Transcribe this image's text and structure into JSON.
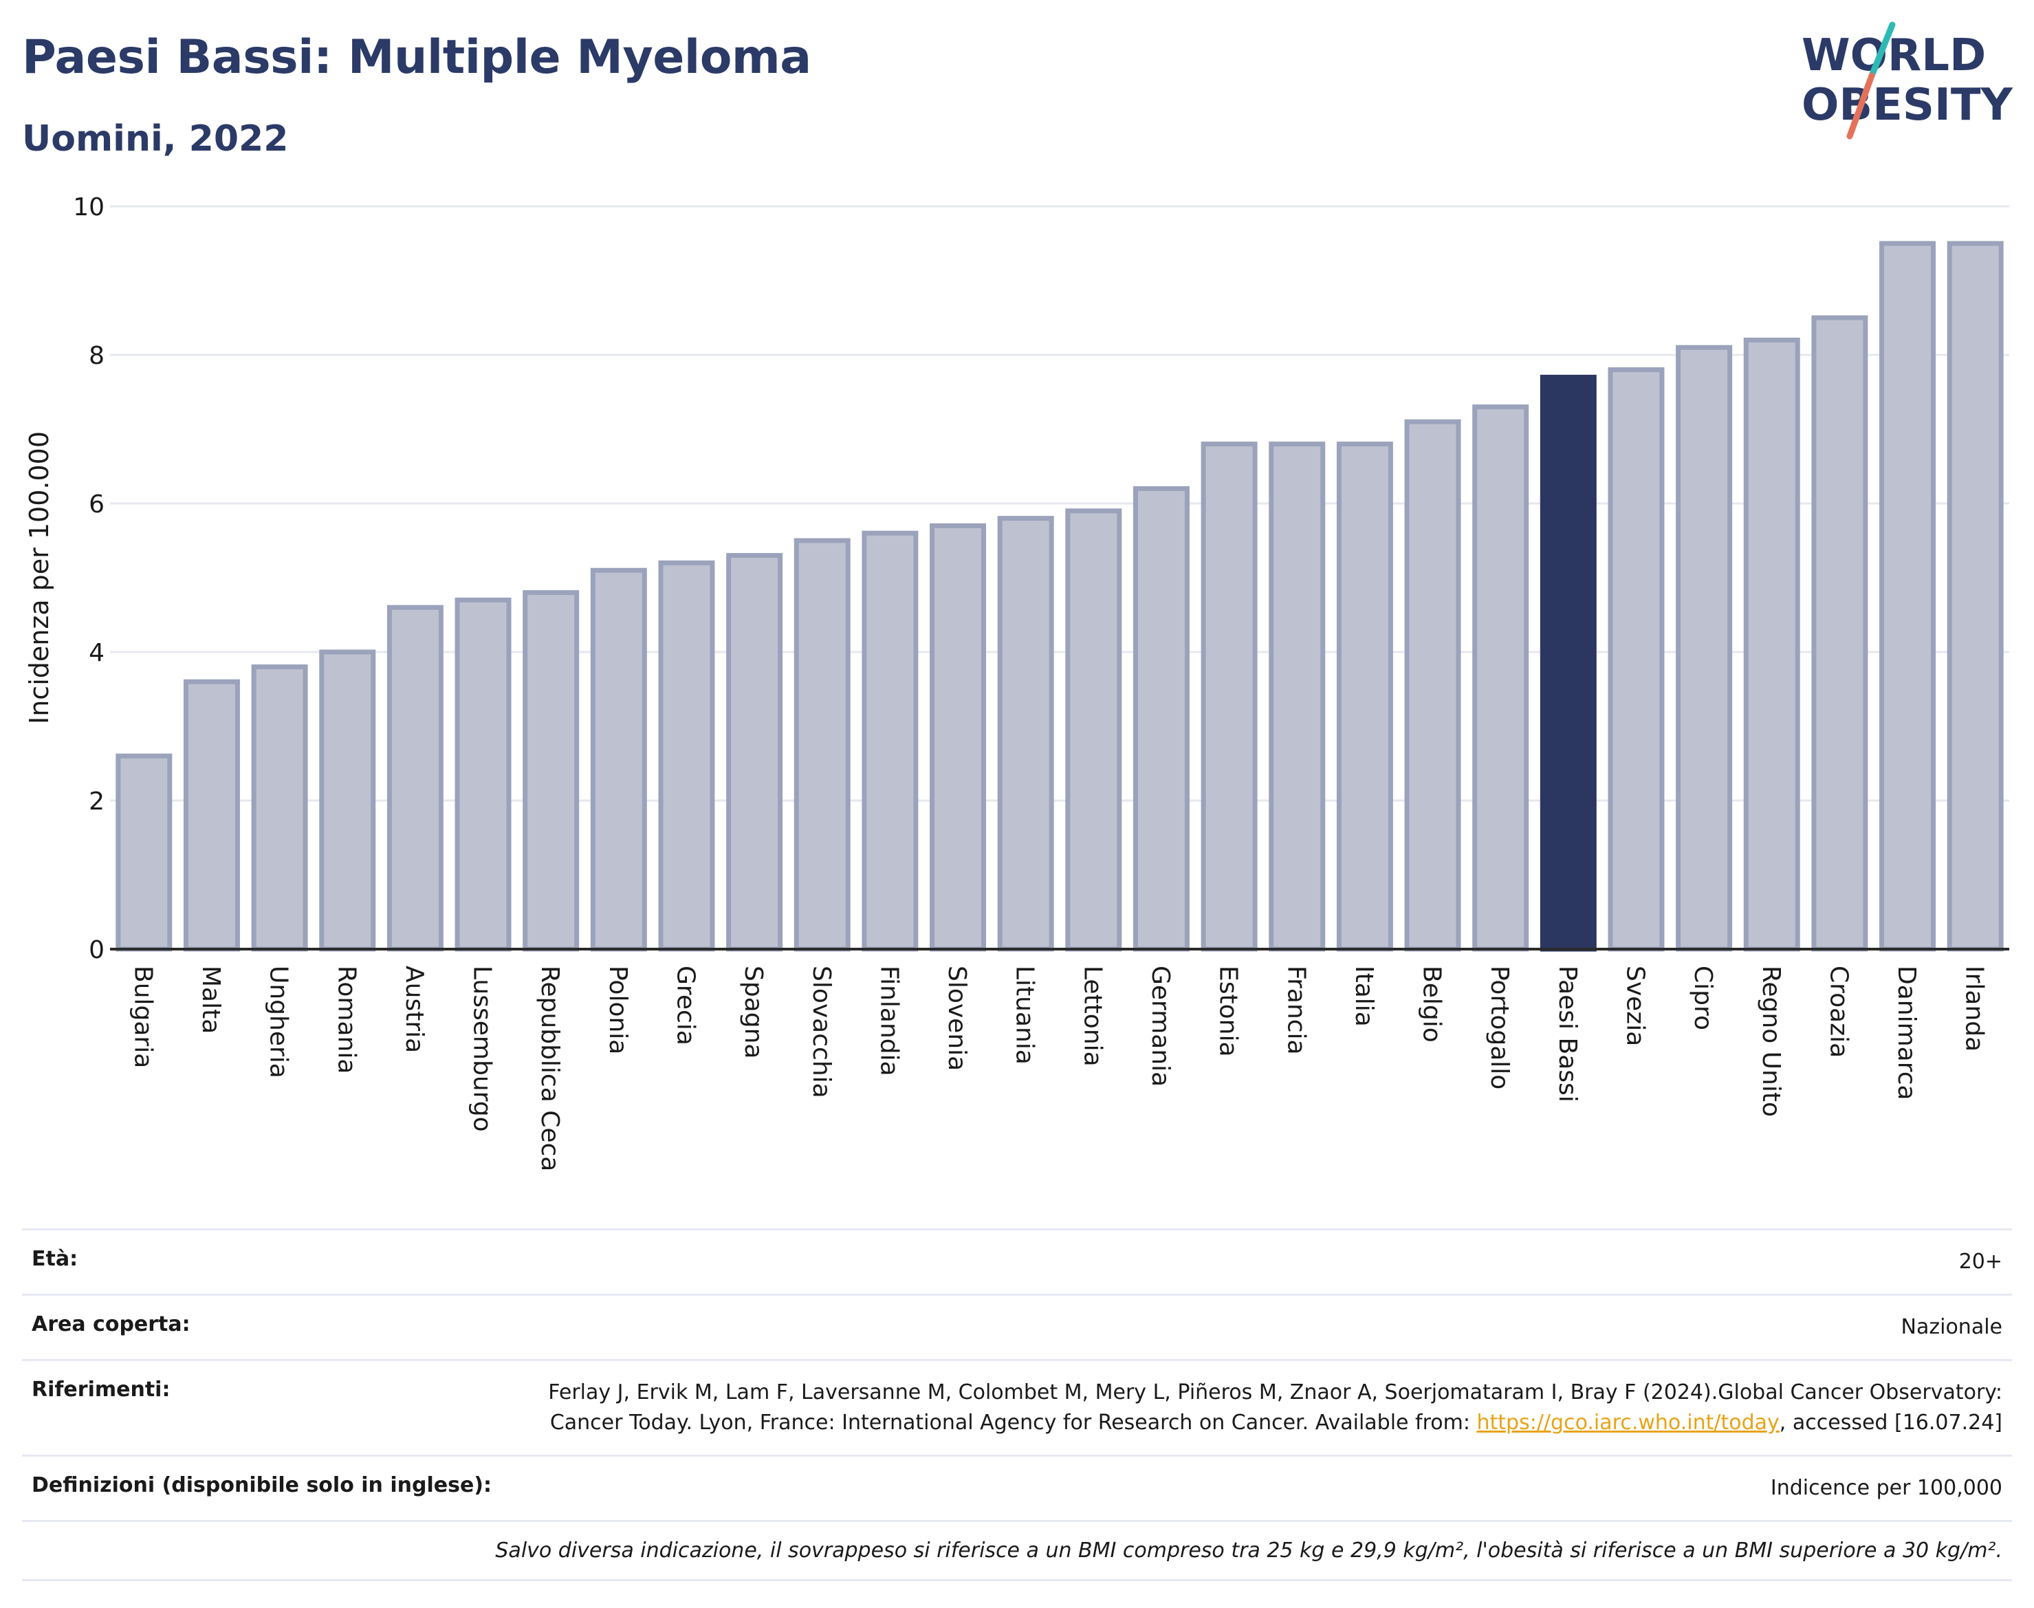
{
  "header": {
    "title": "Paesi Bassi: Multiple Myeloma",
    "subtitle": "Uomini, 2022",
    "logo_line1": "WORLD",
    "logo_line2": "OBESITY"
  },
  "chart_data": {
    "type": "bar",
    "title": "Paesi Bassi: Multiple Myeloma",
    "subtitle": "Uomini, 2022",
    "ylabel": "Incidenza per 100.000",
    "xlabel": "",
    "ylim": [
      0,
      10
    ],
    "yticks": [
      0,
      2,
      4,
      6,
      8,
      10
    ],
    "grid": true,
    "categories": [
      "Bulgaria",
      "Malta",
      "Ungheria",
      "Romania",
      "Austria",
      "Lussemburgo",
      "Repubblica Ceca",
      "Polonia",
      "Grecia",
      "Spagna",
      "Slovacchia",
      "Finlandia",
      "Slovenia",
      "Lituania",
      "Lettonia",
      "Germania",
      "Estonia",
      "Francia",
      "Italia",
      "Belgio",
      "Portogallo",
      "Paesi Bassi",
      "Svezia",
      "Cipro",
      "Regno Unito",
      "Croazia",
      "Danimarca",
      "Irlanda"
    ],
    "values": [
      2.6,
      3.6,
      3.8,
      4.0,
      4.6,
      4.7,
      4.8,
      5.1,
      5.2,
      5.3,
      5.5,
      5.6,
      5.7,
      5.8,
      5.9,
      6.2,
      6.8,
      6.8,
      6.8,
      7.1,
      7.3,
      7.7,
      7.8,
      8.1,
      8.2,
      8.5,
      9.5,
      9.5
    ],
    "highlight": "Paesi Bassi",
    "colors": {
      "bar": "#bec2d0",
      "bar_border": "#9ba2bb",
      "highlight": "#2b3661",
      "grid": "#e6e8ef",
      "axis": "#2b2b2b"
    }
  },
  "info": {
    "rows": [
      {
        "label": "Età:",
        "value": "20+"
      },
      {
        "label": "Area coperta:",
        "value": "Nazionale"
      },
      {
        "label": "Riferimenti:",
        "value_before": "Ferlay J, Ervik M, Lam F, Laversanne M, Colombet M, Mery L, Piñeros M, Znaor A, Soerjomataram I, Bray F (2024).Global Cancer Observatory: Cancer Today. Lyon, France: International Agency for Research on Cancer. Available from: ",
        "link": "https://gco.iarc.who.int/today",
        "value_after": ", accessed [16.07.24]"
      },
      {
        "label": "Definizioni (disponibile solo in inglese):",
        "value": "Indicence per 100,000"
      }
    ],
    "note": "Salvo diversa indicazione, il sovrappeso si riferisce a un BMI compreso tra 25 kg e 29,9 kg/m², l'obesità si riferisce a un BMI superiore a 30 kg/m²."
  }
}
